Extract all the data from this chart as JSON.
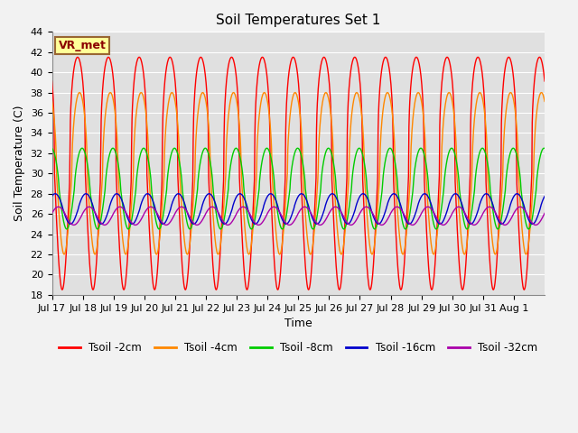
{
  "title": "Soil Temperatures Set 1",
  "xlabel": "Time",
  "ylabel": "Soil Temperature (C)",
  "ylim": [
    18,
    44
  ],
  "yticks": [
    18,
    20,
    22,
    24,
    26,
    28,
    30,
    32,
    34,
    36,
    38,
    40,
    42,
    44
  ],
  "n_days": 16,
  "n_points": 1152,
  "colors": {
    "Tsoil -2cm": "#FF0000",
    "Tsoil -4cm": "#FF8800",
    "Tsoil -8cm": "#00CC00",
    "Tsoil -16cm": "#0000CC",
    "Tsoil -32cm": "#AA00AA"
  },
  "amplitudes": {
    "Tsoil -2cm": 11.5,
    "Tsoil -4cm": 8.0,
    "Tsoil -8cm": 4.0,
    "Tsoil -16cm": 1.5,
    "Tsoil -32cm": 0.9
  },
  "means": {
    "Tsoil -2cm": 30.0,
    "Tsoil -4cm": 30.0,
    "Tsoil -8cm": 28.5,
    "Tsoil -16cm": 26.5,
    "Tsoil -32cm": 25.8
  },
  "phase_shifts_hours": {
    "Tsoil -2cm": 0.0,
    "Tsoil -4cm": 1.5,
    "Tsoil -8cm": 3.5,
    "Tsoil -16cm": 6.5,
    "Tsoil -32cm": 9.0
  },
  "sharpness": {
    "Tsoil -2cm": 3.0,
    "Tsoil -4cm": 2.0,
    "Tsoil -8cm": 1.5,
    "Tsoil -16cm": 1.2,
    "Tsoil -32cm": 1.1
  },
  "tick_labels": [
    "Jul 17",
    "Jul 18",
    "Jul 19",
    "Jul 20",
    "Jul 21",
    "Jul 22",
    "Jul 23",
    "Jul 24",
    "Jul 25",
    "Jul 26",
    "Jul 27",
    "Jul 28",
    "Jul 29",
    "Jul 30",
    "Jul 31",
    "Aug 1"
  ],
  "tick_positions": [
    0,
    1,
    2,
    3,
    4,
    5,
    6,
    7,
    8,
    9,
    10,
    11,
    12,
    13,
    14,
    15
  ],
  "annotation_text": "VR_met",
  "background_color": "#E0E0E0",
  "fig_background": "#F2F2F2",
  "grid_color": "#FFFFFF",
  "linewidth": 1.0,
  "title_fontsize": 11,
  "label_fontsize": 9,
  "tick_fontsize": 8,
  "legend_fontsize": 8.5
}
